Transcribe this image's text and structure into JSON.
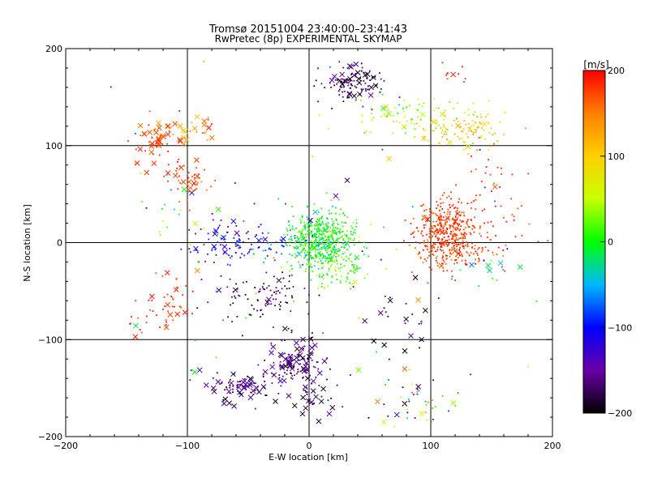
{
  "chart_data": {
    "type": "scatter",
    "title": "Tromsø 20151004 23:40:00–23:41:43",
    "subtitle": "RwPretec (8p) EXPERIMENTAL SKYMAP",
    "xlabel": "E-W location [km]",
    "ylabel": "N-S location [km]",
    "xlim": [
      -200,
      200
    ],
    "ylim": [
      -200,
      200
    ],
    "x_ticks": [
      -200,
      -100,
      0,
      100,
      200
    ],
    "y_ticks": [
      -200,
      -100,
      0,
      100,
      200
    ],
    "x_tick_labels": [
      "−200",
      "−100",
      "0",
      "100",
      "200"
    ],
    "y_tick_labels": [
      "−200",
      "−100",
      "0",
      "100",
      "200"
    ],
    "grid_lines": {
      "x": [
        -100,
        0,
        100
      ],
      "y": [
        -100,
        0,
        100
      ]
    },
    "legend": "none",
    "colorbar": {
      "label": "[m/s]",
      "range": [
        -200,
        200
      ],
      "ticks": [
        200,
        100,
        0,
        -100,
        -200
      ],
      "tick_labels": [
        "200",
        "100",
        "0",
        "−100",
        "−200"
      ],
      "colormap": [
        "#000000",
        "#6a00a8",
        "#0000ff",
        "#00b8ff",
        "#00ff00",
        "#c8ff00",
        "#ffd000",
        "#ff8000",
        "#ff0000"
      ]
    },
    "markers": {
      "dot": "small dots (meteor positions)",
      "cross": "x markers"
    },
    "series": [
      {
        "clusters": [
          {
            "cx": 10,
            "cy": 5,
            "sx": 14,
            "sy": 14,
            "n": 520,
            "v": [
              -40,
              40
            ],
            "cross": 0.02
          },
          {
            "cx": 18,
            "cy": -22,
            "sx": 14,
            "sy": 10,
            "n": 120,
            "v": [
              -30,
              60
            ],
            "cross": 0.02
          },
          {
            "cx": 113,
            "cy": 10,
            "sx": 12,
            "sy": 16,
            "n": 380,
            "v": [
              150,
              200
            ],
            "cross": 0.03
          },
          {
            "cx": 130,
            "cy": -8,
            "sx": 18,
            "sy": 8,
            "n": 60,
            "v": [
              150,
              200
            ],
            "cross": 0.02
          },
          {
            "cx": 150,
            "cy": 40,
            "sx": 22,
            "sy": 25,
            "n": 70,
            "v": [
              160,
              200
            ],
            "cross": 0.02
          },
          {
            "cx": 35,
            "cy": 165,
            "sx": 14,
            "sy": 10,
            "n": 110,
            "v": [
              -200,
              -150
            ],
            "cross": 0.25
          },
          {
            "cx": 80,
            "cy": 130,
            "sx": 22,
            "sy": 10,
            "n": 70,
            "v": [
              0,
              90
            ],
            "cross": 0.08
          },
          {
            "cx": 125,
            "cy": 118,
            "sx": 20,
            "sy": 10,
            "n": 110,
            "v": [
              60,
              140
            ],
            "cross": 0.05
          },
          {
            "cx": 118,
            "cy": 173,
            "sx": 6,
            "sy": 5,
            "n": 10,
            "v": [
              170,
              200
            ],
            "cross": 0.1
          },
          {
            "cx": -128,
            "cy": 105,
            "sx": 8,
            "sy": 12,
            "n": 45,
            "v": [
              150,
              200
            ],
            "cross": 0.5
          },
          {
            "cx": -97,
            "cy": 115,
            "sx": 12,
            "sy": 10,
            "n": 30,
            "v": [
              100,
              200
            ],
            "cross": 0.4
          },
          {
            "cx": -98,
            "cy": 65,
            "sx": 10,
            "sy": 12,
            "n": 50,
            "v": [
              140,
              200
            ],
            "cross": 0.15
          },
          {
            "cx": -110,
            "cy": 35,
            "sx": 15,
            "sy": 18,
            "n": 15,
            "v": [
              -40,
              120
            ],
            "cross": 0.2
          },
          {
            "cx": -70,
            "cy": 2,
            "sx": 16,
            "sy": 14,
            "n": 90,
            "v": [
              -150,
              -80
            ],
            "cross": 0.06
          },
          {
            "cx": -25,
            "cy": -5,
            "sx": 15,
            "sy": 12,
            "n": 40,
            "v": [
              -100,
              -30
            ],
            "cross": 0.05
          },
          {
            "cx": -35,
            "cy": -55,
            "sx": 22,
            "sy": 12,
            "n": 90,
            "v": [
              -200,
              -150
            ],
            "cross": 0.05
          },
          {
            "cx": -115,
            "cy": -60,
            "sx": 15,
            "sy": 15,
            "n": 40,
            "v": [
              160,
              200
            ],
            "cross": 0.25
          },
          {
            "cx": -135,
            "cy": -80,
            "sx": 8,
            "sy": 8,
            "n": 10,
            "v": [
              160,
              200
            ],
            "cross": 0.5
          },
          {
            "cx": -10,
            "cy": -125,
            "sx": 12,
            "sy": 15,
            "n": 130,
            "v": [
              -200,
              -130
            ],
            "cross": 0.35
          },
          {
            "cx": -55,
            "cy": -150,
            "sx": 16,
            "sy": 8,
            "n": 80,
            "v": [
              -200,
              -130
            ],
            "cross": 0.35
          },
          {
            "cx": 5,
            "cy": -160,
            "sx": 8,
            "sy": 10,
            "n": 25,
            "v": [
              -200,
              -150
            ],
            "cross": 0.4
          },
          {
            "cx": 90,
            "cy": -165,
            "sx": 18,
            "sy": 15,
            "n": 45,
            "v": [
              -200,
              200
            ],
            "cross": 0.15
          },
          {
            "cx": 80,
            "cy": -80,
            "sx": 15,
            "sy": 20,
            "n": 25,
            "v": [
              -200,
              -150
            ],
            "cross": 0.3
          },
          {
            "cx": 155,
            "cy": -30,
            "sx": 20,
            "sy": 15,
            "n": 15,
            "v": [
              -120,
              30
            ],
            "cross": 0.3
          },
          {
            "cx": 0,
            "cy": 0,
            "sx": 110,
            "sy": 110,
            "n": 80,
            "v": [
              -200,
              200
            ],
            "cross": 0.15
          }
        ]
      }
    ]
  }
}
